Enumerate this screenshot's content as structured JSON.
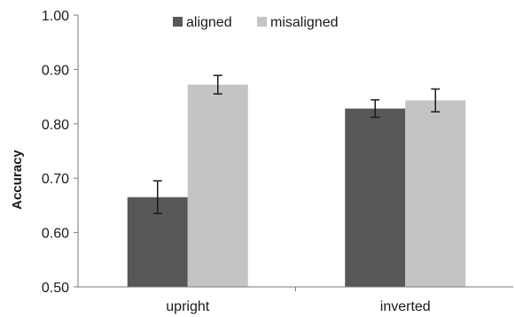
{
  "chart_data": {
    "type": "bar",
    "title": "",
    "xlabel": "",
    "ylabel": "Accuracy",
    "ylim": [
      0.5,
      1.0
    ],
    "yticks": [
      "0.50",
      "0.60",
      "0.70",
      "0.80",
      "0.90",
      "1.00"
    ],
    "grid": false,
    "legend_position": "top-center",
    "categories": [
      "upright",
      "inverted"
    ],
    "series": [
      {
        "name": "aligned",
        "color": "#575757",
        "values": [
          0.665,
          0.828
        ],
        "errors": [
          0.03,
          0.016
        ]
      },
      {
        "name": "misaligned",
        "color": "#c4c4c4",
        "values": [
          0.872,
          0.843
        ],
        "errors": [
          0.017,
          0.021
        ]
      }
    ]
  }
}
